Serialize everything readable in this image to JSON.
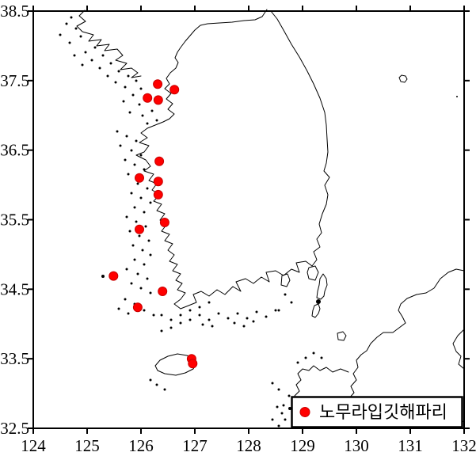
{
  "figure": {
    "type": "distribution-map",
    "background": "#ffffff",
    "frame_color": "#000000"
  },
  "legend": {
    "label": "노무라입깃해파리",
    "marker": "circle",
    "marker_color": "#ff0000",
    "position": "bottom-right"
  },
  "axes": {
    "x": {
      "ticks": [
        "124",
        "125",
        "126",
        "127",
        "128",
        "129",
        "130",
        "131",
        "132"
      ]
    },
    "y": {
      "ticks": [
        "38.5",
        "37.5",
        "36.5",
        "35.5",
        "34.5",
        "33.5",
        "32.5"
      ]
    }
  },
  "chart_data": {
    "type": "scatter",
    "title": "",
    "xlabel": "",
    "ylabel": "",
    "xlim": [
      124,
      132
    ],
    "ylim": [
      32.5,
      38.5
    ],
    "x_ticks": [
      124,
      125,
      126,
      127,
      128,
      129,
      130,
      131,
      132
    ],
    "y_ticks": [
      38.5,
      37.5,
      36.5,
      35.5,
      34.5,
      33.5,
      32.5
    ],
    "grid": false,
    "legend_position": "bottom-right",
    "basemap": "korea-coastline",
    "series": [
      {
        "name": "노무라입깃해파리",
        "color": "#ff0000",
        "edge_color": "#c80000",
        "marker": "circle",
        "marker_radius_px": 5.5,
        "points": [
          [
            126.31,
            37.45
          ],
          [
            126.62,
            37.37
          ],
          [
            126.12,
            37.25
          ],
          [
            126.32,
            37.22
          ],
          [
            126.34,
            36.34
          ],
          [
            125.97,
            36.1
          ],
          [
            126.32,
            36.05
          ],
          [
            126.32,
            35.86
          ],
          [
            126.44,
            35.46
          ],
          [
            125.97,
            35.36
          ],
          [
            125.49,
            34.69
          ],
          [
            126.4,
            34.47
          ],
          [
            125.94,
            34.24
          ],
          [
            126.94,
            33.5
          ],
          [
            126.96,
            33.43
          ]
        ]
      }
    ]
  }
}
